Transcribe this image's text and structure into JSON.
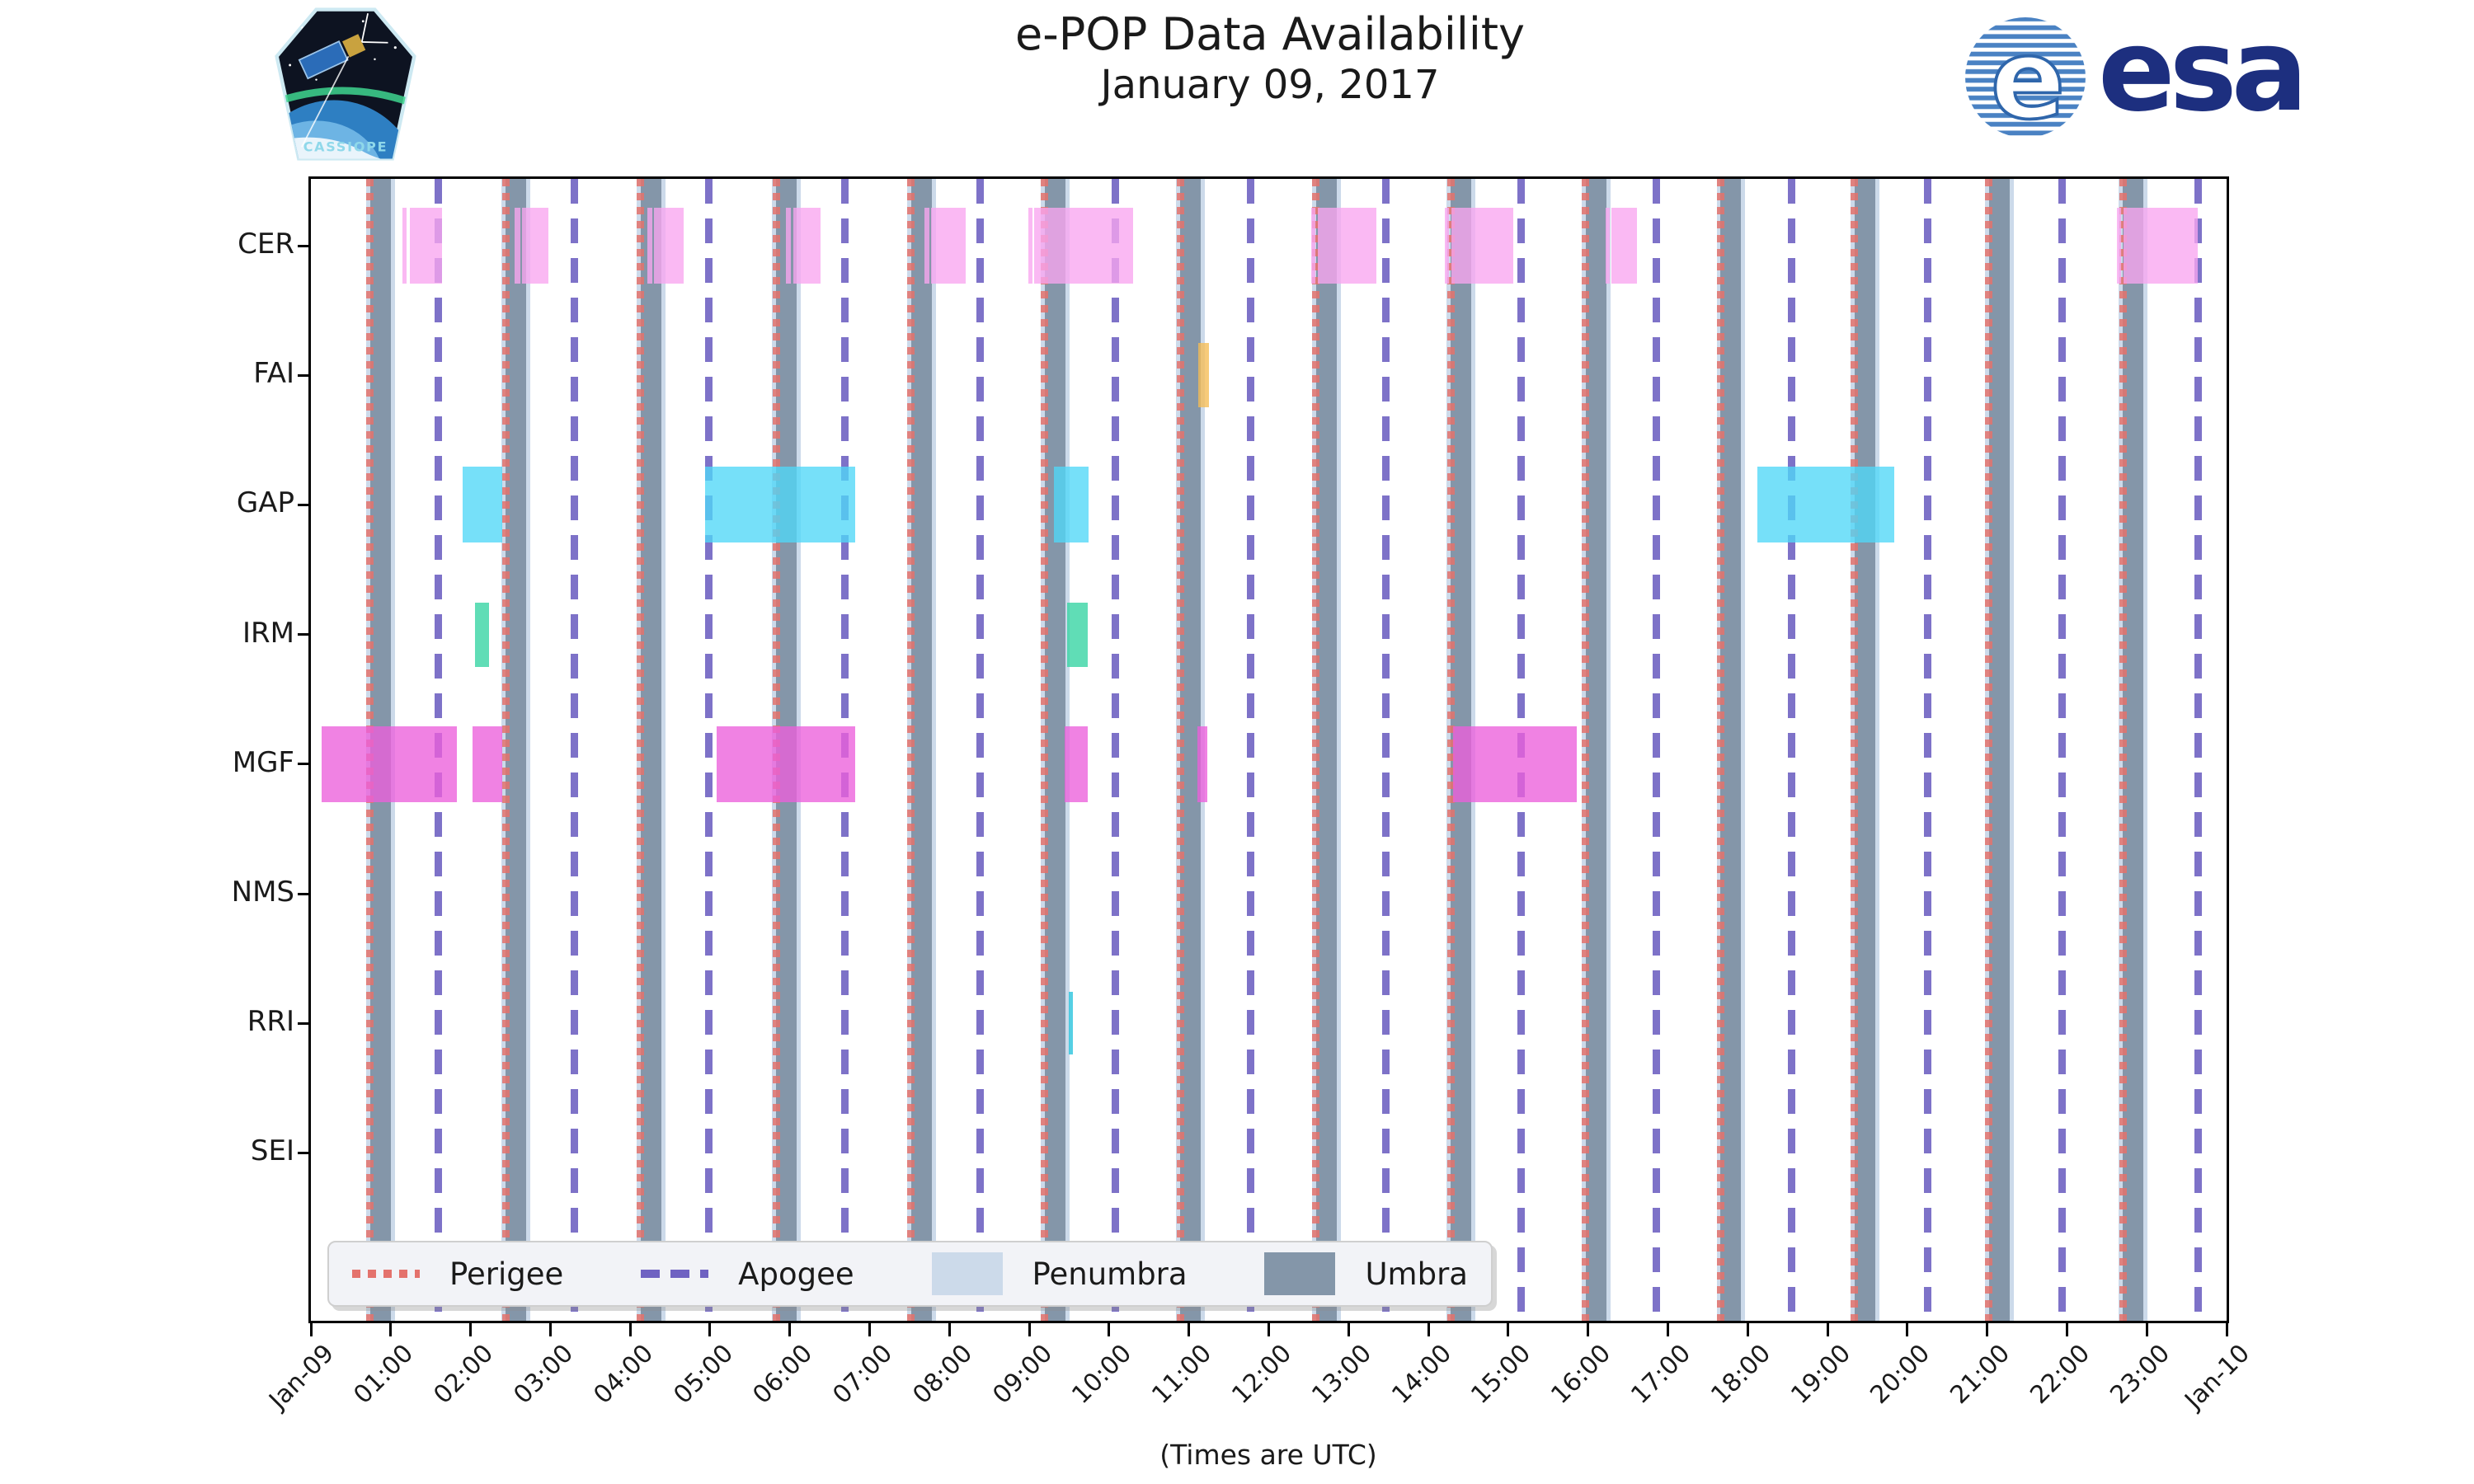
{
  "header": {
    "title_line1": "e-POP Data Availability",
    "title_line2": "January 09, 2017",
    "cassiope_text": "CASSIOPE",
    "esa_text": "esa"
  },
  "axes": {
    "xlabel": "(Times are UTC)",
    "x_tick_labels": [
      "Jan-09",
      "01:00",
      "02:00",
      "03:00",
      "04:00",
      "05:00",
      "06:00",
      "07:00",
      "08:00",
      "09:00",
      "10:00",
      "11:00",
      "12:00",
      "13:00",
      "14:00",
      "15:00",
      "16:00",
      "17:00",
      "18:00",
      "19:00",
      "20:00",
      "21:00",
      "22:00",
      "23:00",
      "Jan-10"
    ],
    "y_labels": [
      "CER",
      "FAI",
      "GAP",
      "IRM",
      "MGF",
      "NMS",
      "RRI",
      "SEI"
    ]
  },
  "legend": [
    {
      "label": "Perigee",
      "style": "dotted",
      "color": "#e4726c"
    },
    {
      "label": "Apogee",
      "style": "dashed",
      "color": "#6f62c2"
    },
    {
      "label": "Penumbra",
      "style": "patch",
      "color": "#ccdaea"
    },
    {
      "label": "Umbra",
      "style": "patch",
      "color": "#8496a9"
    }
  ],
  "chart_data": {
    "type": "timeline",
    "title": "e-POP Data Availability January 09, 2017",
    "xlabel": "(Times are UTC)",
    "x_axis": {
      "start": "Jan-09 00:00 UTC",
      "end": "Jan-10 00:00 UTC",
      "unit": "hours",
      "range": [
        0,
        24
      ]
    },
    "rows": [
      "CER",
      "FAI",
      "GAP",
      "IRM",
      "MGF",
      "NMS",
      "RRI",
      "SEI"
    ],
    "series": [
      {
        "name": "CER",
        "color": "#f9a5ef",
        "intervals": [
          [
            1.15,
            1.2
          ],
          [
            1.24,
            1.64
          ],
          [
            2.55,
            2.62
          ],
          [
            2.64,
            2.98
          ],
          [
            4.22,
            4.28
          ],
          [
            4.3,
            4.67
          ],
          [
            5.95,
            6.01
          ],
          [
            6.04,
            6.38
          ],
          [
            7.69,
            7.75
          ],
          [
            7.77,
            8.2
          ],
          [
            8.99,
            9.04
          ],
          [
            9.06,
            10.3
          ],
          [
            12.53,
            12.58
          ],
          [
            12.61,
            13.35
          ],
          [
            14.21,
            14.26
          ],
          [
            14.29,
            15.06
          ],
          [
            16.22,
            16.27
          ],
          [
            16.29,
            16.61
          ],
          [
            22.63,
            22.68
          ],
          [
            22.71,
            23.64
          ]
        ]
      },
      {
        "name": "FAI",
        "color": "#f5bd55",
        "intervals": [
          [
            11.12,
            11.25
          ]
        ]
      },
      {
        "name": "GAP",
        "color": "#50d7f7",
        "intervals": [
          [
            1.9,
            2.4
          ],
          [
            4.94,
            6.82
          ],
          [
            9.31,
            9.74
          ],
          [
            18.12,
            19.84
          ]
        ]
      },
      {
        "name": "IRM",
        "color": "#33d3a2",
        "intervals": [
          [
            2.06,
            2.23
          ],
          [
            9.47,
            9.73
          ]
        ]
      },
      {
        "name": "MGF",
        "color": "#ec5fdb",
        "intervals": [
          [
            0.13,
            1.83
          ],
          [
            2.02,
            2.4
          ],
          [
            5.08,
            6.82
          ],
          [
            9.44,
            9.73
          ],
          [
            11.11,
            11.23
          ],
          [
            14.31,
            15.86
          ]
        ]
      },
      {
        "name": "NMS",
        "color": "#9acd32",
        "intervals": []
      },
      {
        "name": "RRI",
        "color": "#25c3dc",
        "intervals": [
          [
            9.49,
            9.55
          ]
        ]
      },
      {
        "name": "SEI",
        "color": "#cccccc",
        "intervals": []
      }
    ],
    "perigee_hours": [
      0.74,
      2.44,
      4.13,
      5.83,
      7.52,
      9.19,
      10.89,
      12.59,
      14.28,
      15.97,
      17.66,
      19.34,
      21.02,
      22.7
    ],
    "apogee_hours": [
      1.6,
      3.3,
      4.99,
      6.69,
      8.38,
      10.08,
      11.77,
      13.47,
      15.16,
      16.86,
      18.55,
      20.25,
      21.94,
      23.64
    ],
    "umbra_intervals": [
      [
        0.74,
        1.0
      ],
      [
        2.44,
        2.7
      ],
      [
        4.13,
        4.39
      ],
      [
        5.83,
        6.09
      ],
      [
        7.52,
        7.78
      ],
      [
        9.19,
        9.45
      ],
      [
        10.89,
        11.15
      ],
      [
        12.59,
        12.85
      ],
      [
        14.28,
        14.54
      ],
      [
        15.97,
        16.23
      ],
      [
        17.66,
        17.92
      ],
      [
        19.34,
        19.6
      ],
      [
        21.02,
        21.28
      ],
      [
        22.7,
        22.96
      ]
    ],
    "penumbra_intervals": [
      [
        0.69,
        1.05
      ],
      [
        2.39,
        2.75
      ],
      [
        4.08,
        4.44
      ],
      [
        5.78,
        6.14
      ],
      [
        7.47,
        7.83
      ],
      [
        9.14,
        9.5
      ],
      [
        10.84,
        11.2
      ],
      [
        12.54,
        12.9
      ],
      [
        14.23,
        14.59
      ],
      [
        15.92,
        16.28
      ],
      [
        17.61,
        17.97
      ],
      [
        19.29,
        19.65
      ],
      [
        20.97,
        21.33
      ],
      [
        22.65,
        23.01
      ]
    ],
    "colors": {
      "perigee": "#e4726c",
      "apogee": "#6f62c2",
      "umbra": "#8496a9",
      "penumbra": "#ccdaea"
    },
    "legend_position": "lower left",
    "grid": false
  }
}
